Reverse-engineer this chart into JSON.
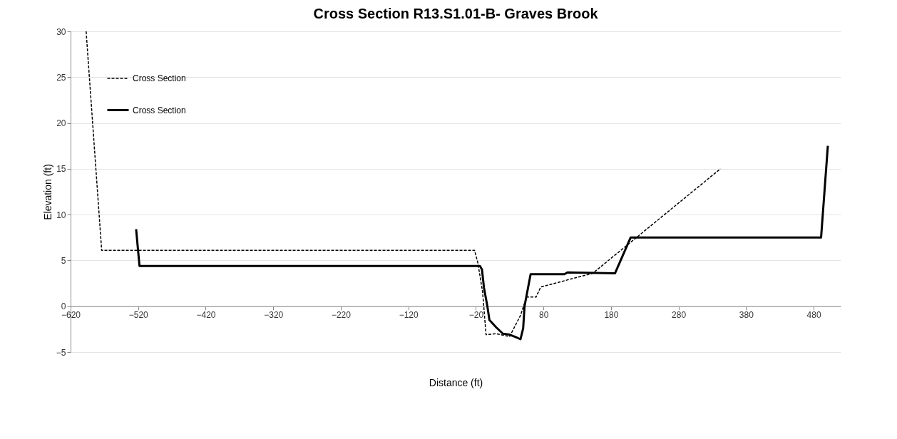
{
  "chart_data": {
    "type": "line",
    "title": "Cross Section R13.S1.01-B- Graves Brook",
    "xlabel": "Distance (ft)",
    "ylabel": "Elevation (ft)",
    "xlim": [
      -620,
      520
    ],
    "xticks": [
      -620,
      -520,
      -420,
      -320,
      -220,
      -120,
      -20,
      80,
      180,
      280,
      380,
      480
    ],
    "ylim": [
      -5,
      30
    ],
    "yticks": [
      -5,
      0,
      5,
      10,
      15,
      20,
      25,
      30
    ],
    "grid": "y",
    "legend": "top left",
    "marker": "none",
    "series": [
      {
        "name": "Cross Section",
        "color": "#000000",
        "line_style": "dashed",
        "x": [
          -597,
          -574,
          -22,
          -17,
          -10,
          -5,
          10,
          30,
          46,
          55,
          69,
          76,
          153,
          342
        ],
        "values": [
          30,
          6.1,
          6.1,
          4.7,
          1.5,
          -3.1,
          -3.0,
          -3.3,
          -1.0,
          1.0,
          1.0,
          2.1,
          3.6,
          15
        ]
      },
      {
        "name": "Cross Section",
        "color": "#000000",
        "line_style": "solid",
        "x": [
          -523,
          -518,
          -14,
          -11,
          -8,
          -3,
          0,
          10,
          20,
          30,
          40,
          46,
          50,
          52,
          61,
          111,
          116,
          186,
          209,
          491,
          501
        ],
        "values": [
          8.4,
          4.4,
          4.4,
          4.0,
          2.0,
          0,
          -1.5,
          -2.3,
          -3.0,
          -3.1,
          -3.4,
          -3.6,
          -2.4,
          0,
          3.5,
          3.5,
          3.7,
          3.6,
          7.5,
          7.5,
          17.5
        ]
      }
    ]
  }
}
